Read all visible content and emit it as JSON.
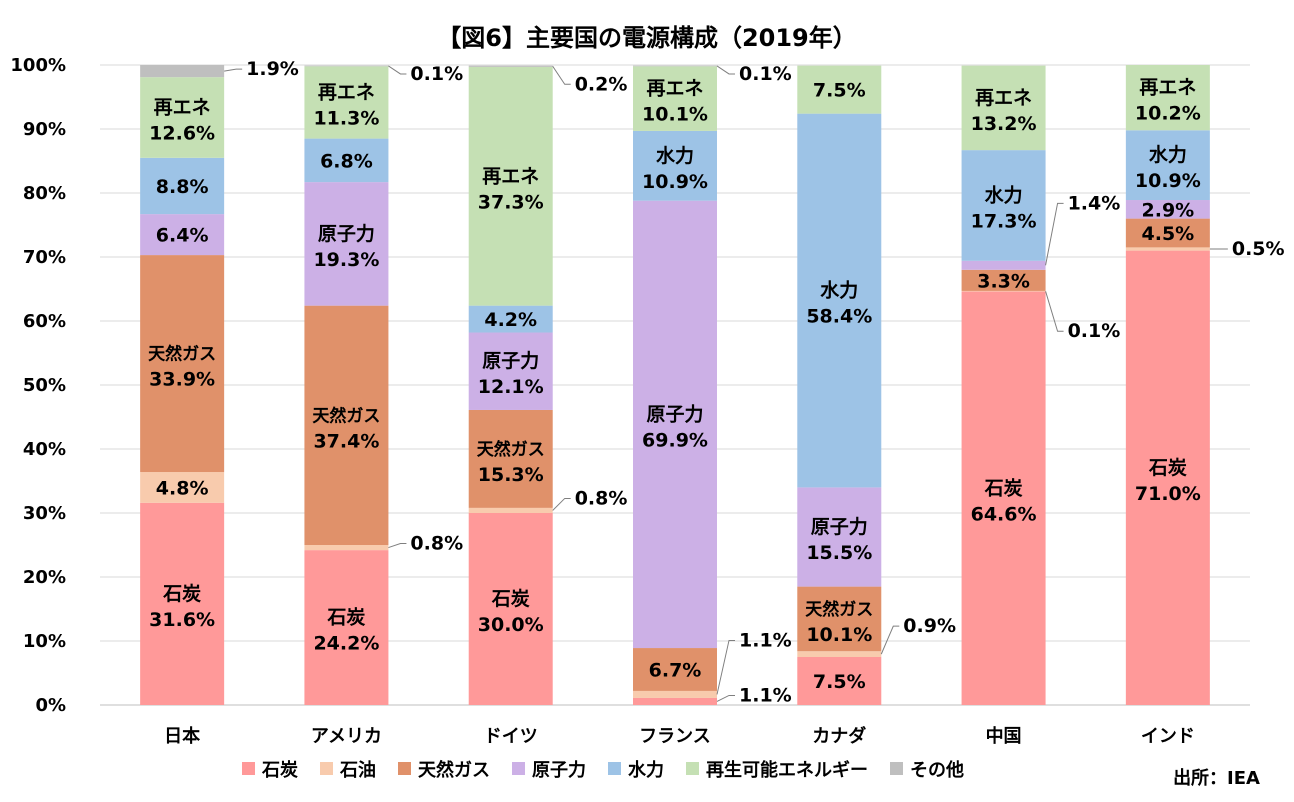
{
  "chart_data": {
    "type": "bar",
    "stacked": true,
    "percent": true,
    "title": "【図6】主要国の電源構成（2019年）",
    "source": "出所：IEA",
    "ylim": [
      0,
      100
    ],
    "yticks": [
      "0%",
      "10%",
      "20%",
      "30%",
      "40%",
      "50%",
      "60%",
      "70%",
      "80%",
      "90%",
      "100%"
    ],
    "grid": true,
    "legend_position": "bottom",
    "categories": [
      "日本",
      "アメリカ",
      "ドイツ",
      "フランス",
      "カナダ",
      "中国",
      "インド"
    ],
    "series": [
      {
        "name": "石炭",
        "short": "石炭",
        "color": "#ff9999",
        "values": [
          31.6,
          24.2,
          30.0,
          1.1,
          7.5,
          64.6,
          71.0
        ]
      },
      {
        "name": "石油",
        "short": "石油",
        "color": "#f8cbad",
        "values": [
          4.8,
          0.8,
          0.8,
          1.1,
          0.9,
          0.1,
          0.5
        ]
      },
      {
        "name": "天然ガス",
        "short": "天然ガス",
        "color": "#e0916a",
        "values": [
          33.9,
          37.4,
          15.3,
          6.7,
          10.1,
          3.3,
          4.5
        ]
      },
      {
        "name": "原子力",
        "short": "原子力",
        "color": "#ccb0e6",
        "values": [
          6.4,
          19.3,
          12.1,
          69.9,
          15.5,
          1.4,
          2.9
        ]
      },
      {
        "name": "水力",
        "short": "水力",
        "color": "#9dc3e6",
        "values": [
          8.8,
          6.8,
          4.2,
          10.9,
          58.4,
          17.3,
          10.9
        ]
      },
      {
        "name": "再生可能エネルギー",
        "short": "再エネ",
        "color": "#c5e0b4",
        "values": [
          12.6,
          11.3,
          37.3,
          10.1,
          7.5,
          13.2,
          10.2
        ]
      },
      {
        "name": "その他",
        "short": "その他",
        "color": "#bfbfbf",
        "values": [
          1.9,
          0.1,
          0.2,
          0.1,
          0,
          0,
          0
        ]
      }
    ]
  }
}
